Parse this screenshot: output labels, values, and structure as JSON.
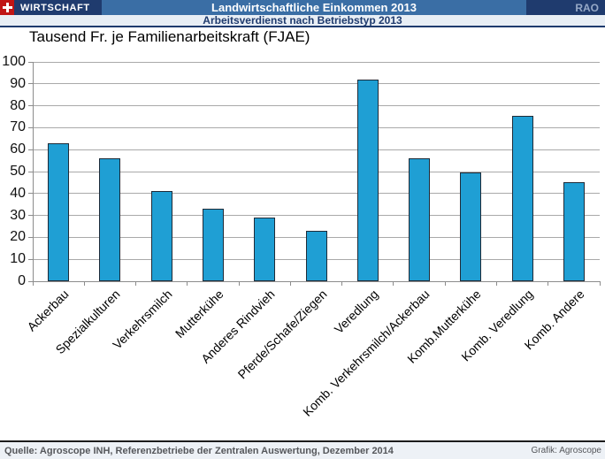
{
  "header": {
    "flag_icon": "swiss-flag",
    "section_label": "WIRTSCHAFT",
    "title": "Landwirtschaftliche Einkommen 2013",
    "right_label": "RAO",
    "subtitle": "Arbeitsverdienst nach Betriebstyp 2013"
  },
  "chart_data": {
    "type": "bar",
    "title": "Tausend Fr. je Familienarbeitskraft (FJAE)",
    "categories": [
      "Ackerbau",
      "Spezialkulturen",
      "Verkehrsmilch",
      "Mutterkühe",
      "Anderes Rindvieh",
      "Pferde/Schafe/Ziegen",
      "Veredlung",
      "Komb. Verkehrsmilch/Ackerbau",
      "Komb.Mutterkühe",
      "Komb. Veredlung",
      "Komb. Andere"
    ],
    "values": [
      63,
      56,
      41,
      33,
      29,
      23,
      92,
      56,
      49.5,
      75.5,
      45
    ],
    "xlabel": "",
    "ylabel": "",
    "ylim": [
      0,
      100
    ],
    "ytick_step": 10,
    "grid": true,
    "legend": "none"
  },
  "footer": {
    "source": "Quelle: Agroscope INH, Referenzbetriebe der Zentralen Auswertung, Dezember 2014",
    "credit": "Grafik: Agroscope"
  },
  "colors": {
    "navy": "#1F3B6E",
    "midblue": "#3A6EA5",
    "flag-red": "#C01515",
    "rao-text": "#96A9C7",
    "subtitle-bg": "#E8EEF5",
    "grid": "#A9A9A9",
    "axis": "#8C8C8C",
    "bar-fill": "#1F9FD4",
    "bar-border": "#1F2B38",
    "footer-bg": "#EDF1F6",
    "footer-text": "#55575B"
  }
}
